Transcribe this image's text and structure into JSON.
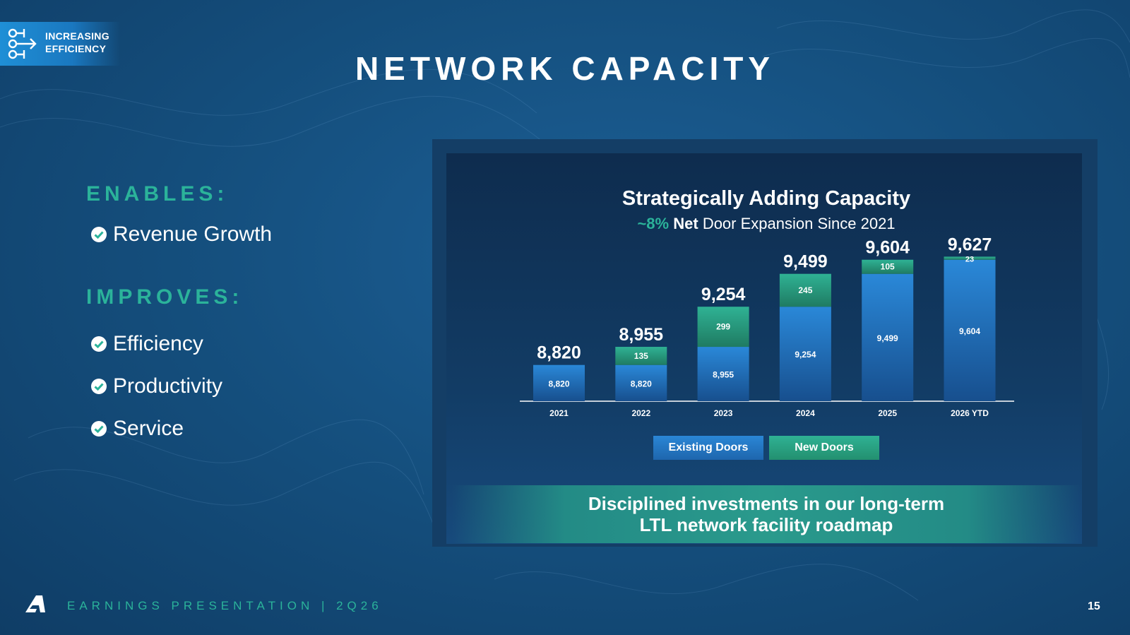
{
  "badge": {
    "line1": "INCREASING",
    "line2": "EFFICIENCY"
  },
  "title": "NETWORK CAPACITY",
  "enables": {
    "heading": "ENABLES:",
    "items": [
      "Revenue Growth"
    ]
  },
  "improves": {
    "heading": "IMPROVES:",
    "items": [
      "Efficiency",
      "Productivity",
      "Service"
    ]
  },
  "colors": {
    "accent_teal": "#2bb39a",
    "existing_doors": "#1f6fc0",
    "new_doors": "#2aa88a"
  },
  "chart_data": {
    "type": "bar",
    "stacked": true,
    "title": "Strategically Adding Capacity",
    "subtitle_highlight": "~8%",
    "subtitle_bold": "Net",
    "subtitle_rest": "Door Expansion Since 2021",
    "categories": [
      "2021",
      "2022",
      "2023",
      "2024",
      "2025",
      "2026 YTD"
    ],
    "series": [
      {
        "name": "Existing Doors",
        "values": [
          8820,
          8820,
          8955,
          9254,
          9499,
          9604
        ]
      },
      {
        "name": "New Doors",
        "values": [
          0,
          135,
          299,
          245,
          105,
          23
        ]
      }
    ],
    "totals": [
      8820,
      8955,
      9254,
      9499,
      9604,
      9627
    ],
    "legend_position": "bottom",
    "grid": false
  },
  "banner": {
    "line1": "Disciplined investments in our long-term",
    "line2": "LTL network facility roadmap"
  },
  "footer": {
    "text": "EARNINGS PRESENTATION  |  2Q26",
    "page": "15"
  }
}
